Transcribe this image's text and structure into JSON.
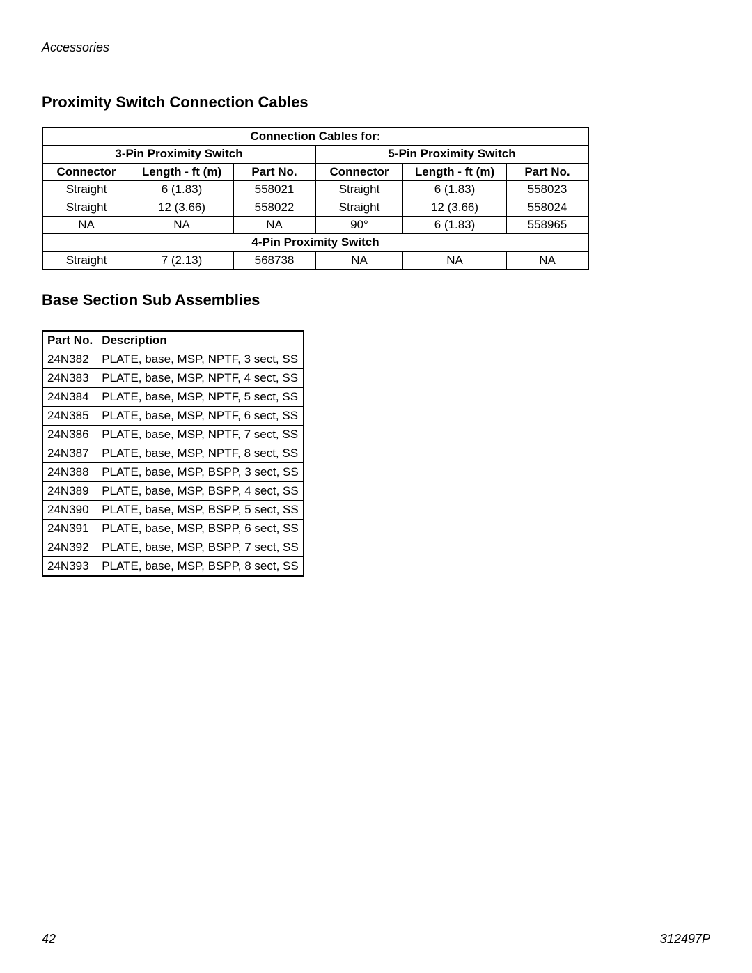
{
  "header": {
    "category": "Accessories"
  },
  "section1": {
    "title": "Proximity Switch Connection Cables",
    "super_header": "Connection Cables for:",
    "group_a": "3-Pin Proximity Switch",
    "group_b": "5-Pin Proximity Switch",
    "mid_header": "4-Pin Proximity Switch",
    "cols": {
      "connector": "Connector",
      "length": "Length - ft (m)",
      "partno": "Part No."
    },
    "rows_top": [
      {
        "a_conn": "Straight",
        "a_len": "6 (1.83)",
        "a_part": "558021",
        "b_conn": "Straight",
        "b_len": "6 (1.83)",
        "b_part": "558023"
      },
      {
        "a_conn": "Straight",
        "a_len": "12 (3.66)",
        "a_part": "558022",
        "b_conn": "Straight",
        "b_len": "12 (3.66)",
        "b_part": "558024"
      },
      {
        "a_conn": "NA",
        "a_len": "NA",
        "a_part": "NA",
        "b_conn": "90°",
        "b_len": "6 (1.83)",
        "b_part": "558965"
      }
    ],
    "rows_bottom": [
      {
        "a_conn": "Straight",
        "a_len": "7 (2.13)",
        "a_part": "568738",
        "b_conn": "NA",
        "b_len": "NA",
        "b_part": "NA"
      }
    ]
  },
  "section2": {
    "title": "Base Section Sub Assemblies",
    "cols": {
      "partno": "Part No.",
      "description": "Description"
    },
    "rows": [
      {
        "partno": "24N382",
        "desc": "PLATE, base, MSP, NPTF, 3 sect, SS"
      },
      {
        "partno": "24N383",
        "desc": "PLATE, base, MSP, NPTF, 4 sect, SS"
      },
      {
        "partno": "24N384",
        "desc": "PLATE, base, MSP, NPTF, 5 sect, SS"
      },
      {
        "partno": "24N385",
        "desc": "PLATE, base, MSP, NPTF, 6 sect, SS"
      },
      {
        "partno": "24N386",
        "desc": "PLATE, base, MSP, NPTF, 7 sect, SS"
      },
      {
        "partno": "24N387",
        "desc": "PLATE, base, MSP, NPTF, 8 sect, SS"
      },
      {
        "partno": "24N388",
        "desc": "PLATE, base, MSP, BSPP, 3 sect, SS"
      },
      {
        "partno": "24N389",
        "desc": "PLATE, base, MSP, BSPP, 4 sect, SS"
      },
      {
        "partno": "24N390",
        "desc": "PLATE, base, MSP, BSPP, 5 sect, SS"
      },
      {
        "partno": "24N391",
        "desc": "PLATE, base, MSP, BSPP, 6 sect, SS"
      },
      {
        "partno": "24N392",
        "desc": "PLATE, base, MSP, BSPP, 7 sect, SS"
      },
      {
        "partno": "24N393",
        "desc": "PLATE, base, MSP, BSPP, 8 sect, SS"
      }
    ]
  },
  "footer": {
    "page": "42",
    "doc": "312497P"
  }
}
